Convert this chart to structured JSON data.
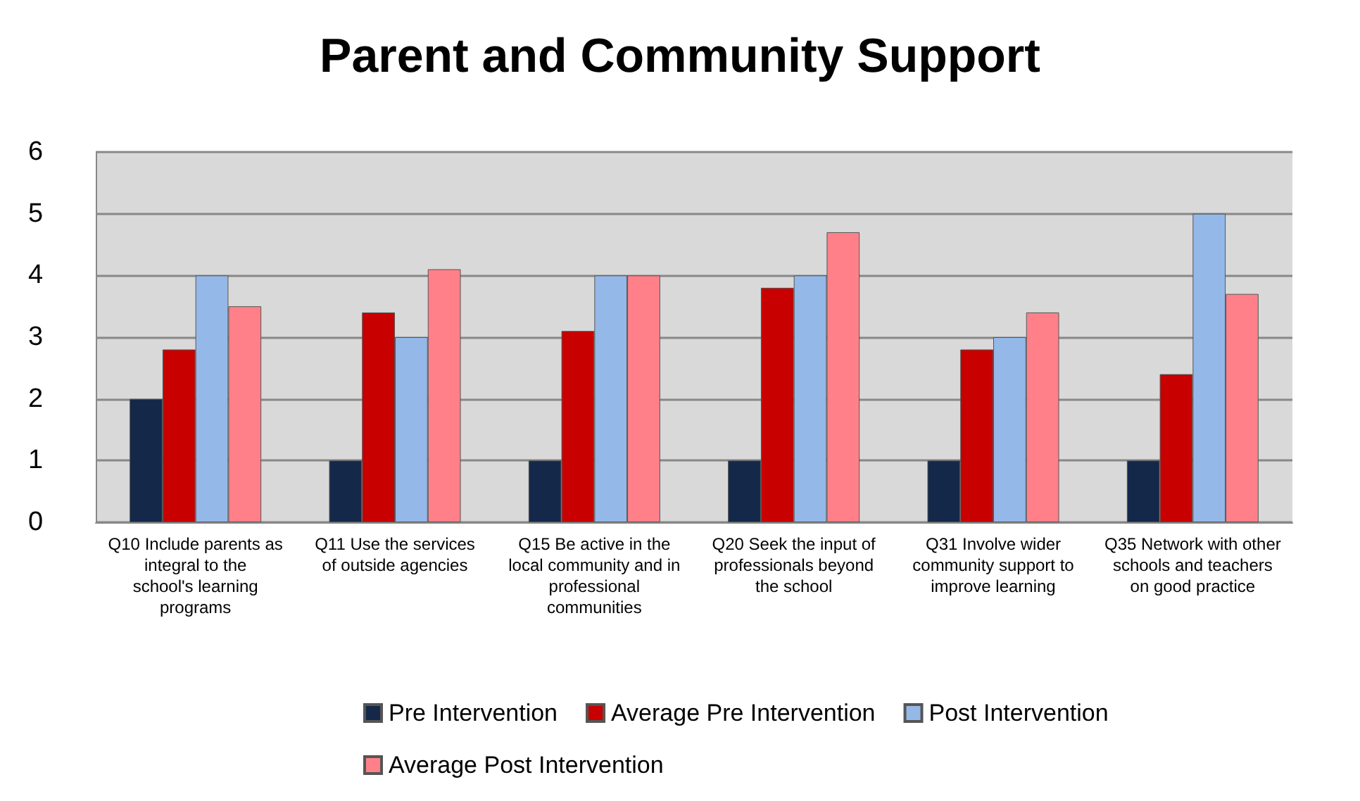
{
  "chart_data": {
    "type": "bar",
    "title": "Parent and Community Support",
    "categories": [
      "Q10 Include parents as integral to the school's learning programs",
      "Q11 Use the services of outside agencies",
      "Q15 Be active in the local community and in professional communities",
      "Q20 Seek the input of professionals beyond the school",
      "Q31 Involve wider community support to improve learning",
      "Q35 Network with other schools and teachers on good practice"
    ],
    "series": [
      {
        "name": "Pre Intervention",
        "color": "#14284a",
        "values": [
          2,
          1,
          1,
          1,
          1,
          1
        ]
      },
      {
        "name": "Average Pre Intervention",
        "color": "#c80000",
        "values": [
          2.8,
          3.4,
          3.1,
          3.8,
          2.8,
          2.4
        ]
      },
      {
        "name": "Post Intervention",
        "color": "#94b8e8",
        "values": [
          4,
          3,
          4,
          4,
          3,
          5
        ]
      },
      {
        "name": "Average Post Intervention",
        "color": "#ff8088",
        "values": [
          3.5,
          4.1,
          4.0,
          4.7,
          3.4,
          3.7
        ]
      }
    ],
    "ylim": [
      0,
      6
    ],
    "yticks": [
      0,
      1,
      2,
      3,
      4,
      5,
      6
    ],
    "grid": "y",
    "legend": "bottom"
  }
}
